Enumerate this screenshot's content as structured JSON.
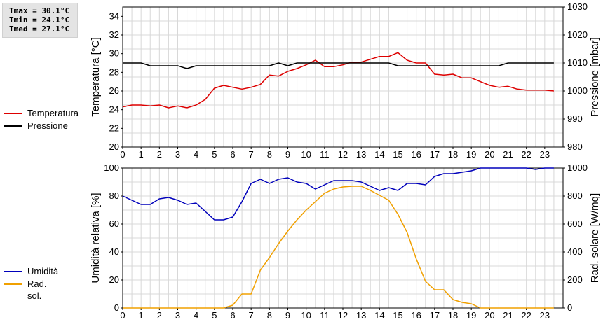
{
  "stats": {
    "tmax": "Tmax = 30.1°C",
    "tmin": "Tmin = 24.1°C",
    "tmed": "Tmed = 27.1°C"
  },
  "legend_top": [
    {
      "label": "Temperatura",
      "color": "#dd0000"
    },
    {
      "label": "Pressione",
      "color": "#000000"
    }
  ],
  "legend_bottom": [
    {
      "label": "Umidità",
      "color": "#0000bb"
    },
    {
      "label": "Rad. sol.",
      "color": "#f0a000"
    }
  ],
  "chart_data": [
    {
      "type": "line",
      "x": [
        0,
        0.5,
        1,
        1.5,
        2,
        2.5,
        3,
        3.5,
        4,
        4.5,
        5,
        5.5,
        6,
        6.5,
        7,
        7.5,
        8,
        8.5,
        9,
        9.5,
        10,
        10.5,
        11,
        11.5,
        12,
        12.5,
        13,
        13.5,
        14,
        14.5,
        15,
        15.5,
        16,
        16.5,
        17,
        17.5,
        18,
        18.5,
        19,
        19.5,
        20,
        20.5,
        21,
        21.5,
        22,
        22.5,
        23,
        23.5
      ],
      "xlim": [
        0,
        24
      ],
      "x_ticks": [
        "0",
        "1",
        "2",
        "3",
        "4",
        "5",
        "6",
        "7",
        "8",
        "9",
        "10",
        "11",
        "12",
        "13",
        "14",
        "15",
        "16",
        "17",
        "18",
        "19",
        "20",
        "21",
        "22",
        "23"
      ],
      "ylabel": "Temperatura [°C]",
      "ylim": [
        20,
        35
      ],
      "y_ticks": [
        "20",
        "22",
        "24",
        "26",
        "28",
        "30",
        "32",
        "34"
      ],
      "y2label": "Pressione [mbar]",
      "y2lim": [
        980,
        1030
      ],
      "y2_ticks": [
        "980",
        "990",
        "1000",
        "1010",
        "1020",
        "1030"
      ],
      "grid": true,
      "series": [
        {
          "name": "Temperatura",
          "axis": "left",
          "color": "#dd0000",
          "values": [
            24.3,
            24.5,
            24.5,
            24.4,
            24.5,
            24.2,
            24.4,
            24.2,
            24.5,
            25.1,
            26.3,
            26.6,
            26.4,
            26.2,
            26.4,
            26.7,
            27.7,
            27.6,
            28.1,
            28.4,
            28.8,
            29.3,
            28.6,
            28.6,
            28.8,
            29.1,
            29.1,
            29.4,
            29.7,
            29.7,
            30.1,
            29.3,
            29.0,
            29.0,
            27.8,
            27.7,
            27.8,
            27.4,
            27.4,
            27.0,
            26.6,
            26.4,
            26.5,
            26.2,
            26.1,
            26.1,
            26.1,
            26.0
          ]
        },
        {
          "name": "Pressione",
          "axis": "right",
          "color": "#000000",
          "values": [
            1010,
            1010,
            1010,
            1009,
            1009,
            1009,
            1009,
            1008,
            1009,
            1009,
            1009,
            1009,
            1009,
            1009,
            1009,
            1009,
            1009,
            1010,
            1009,
            1010,
            1010,
            1010,
            1010,
            1010,
            1010,
            1010,
            1010,
            1010,
            1010,
            1010,
            1009,
            1009,
            1009,
            1009,
            1009,
            1009,
            1009,
            1009,
            1009,
            1009,
            1009,
            1009,
            1010,
            1010,
            1010,
            1010,
            1010,
            1010
          ]
        }
      ]
    },
    {
      "type": "line",
      "x": [
        0,
        0.5,
        1,
        1.5,
        2,
        2.5,
        3,
        3.5,
        4,
        4.5,
        5,
        5.5,
        6,
        6.5,
        7,
        7.5,
        8,
        8.5,
        9,
        9.5,
        10,
        10.5,
        11,
        11.5,
        12,
        12.5,
        13,
        13.5,
        14,
        14.5,
        15,
        15.5,
        16,
        16.5,
        17,
        17.5,
        18,
        18.5,
        19,
        19.5,
        20,
        20.5,
        21,
        21.5,
        22,
        22.5,
        23,
        23.5
      ],
      "xlim": [
        0,
        24
      ],
      "x_ticks": [
        "0",
        "1",
        "2",
        "3",
        "4",
        "5",
        "6",
        "7",
        "8",
        "9",
        "10",
        "11",
        "12",
        "13",
        "14",
        "15",
        "16",
        "17",
        "18",
        "19",
        "20",
        "21",
        "22",
        "23"
      ],
      "ylabel": "Umidità relativa [%]",
      "ylim": [
        0,
        100
      ],
      "y_ticks": [
        "0",
        "20",
        "40",
        "60",
        "80",
        "100"
      ],
      "y2label": "Rad. solare [W/mq]",
      "y2lim": [
        0,
        1000
      ],
      "y2_ticks": [
        "0",
        "200",
        "400",
        "600",
        "800",
        "1000"
      ],
      "grid": true,
      "series": [
        {
          "name": "Umidità",
          "axis": "left",
          "color": "#0000bb",
          "values": [
            80,
            77,
            74,
            74,
            78,
            79,
            77,
            74,
            75,
            69,
            63,
            63,
            65,
            76,
            89,
            92,
            89,
            92,
            93,
            90,
            89,
            85,
            88,
            91,
            91,
            91,
            90,
            87,
            84,
            86,
            84,
            89,
            89,
            88,
            94,
            96,
            96,
            97,
            98,
            100,
            100,
            100,
            100,
            100,
            100,
            99,
            100,
            100
          ]
        },
        {
          "name": "Rad. sol.",
          "axis": "right",
          "color": "#f0a000",
          "values": [
            0,
            0,
            0,
            0,
            0,
            0,
            0,
            0,
            0,
            0,
            0,
            0,
            20,
            100,
            100,
            270,
            360,
            460,
            550,
            630,
            700,
            760,
            820,
            850,
            865,
            870,
            870,
            840,
            805,
            770,
            670,
            540,
            350,
            190,
            130,
            130,
            60,
            40,
            30,
            0,
            0,
            0,
            0,
            0,
            0,
            0,
            0,
            0
          ]
        }
      ]
    }
  ]
}
